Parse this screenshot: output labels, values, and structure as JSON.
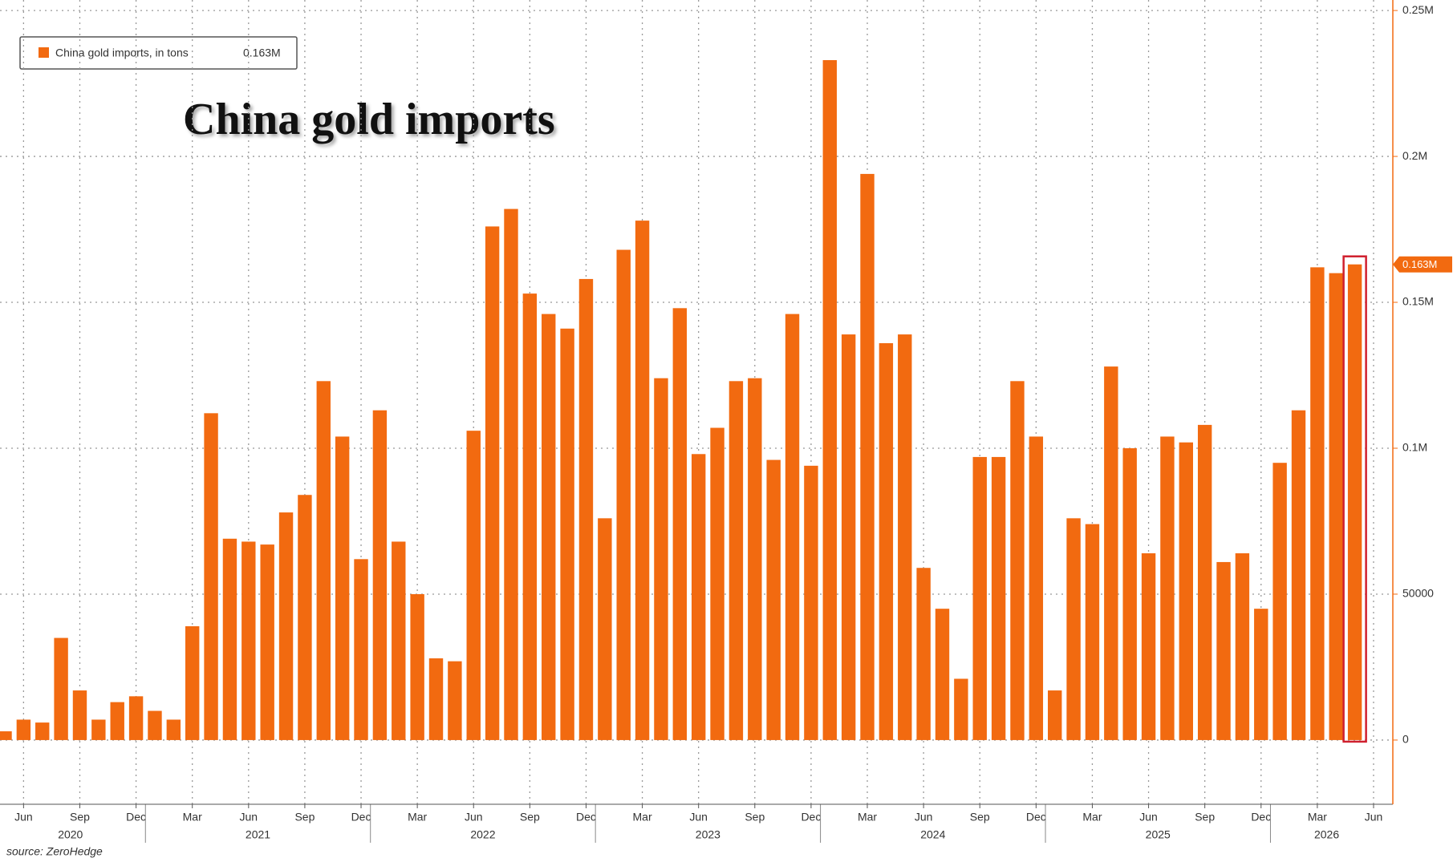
{
  "chart_data": {
    "type": "bar",
    "title": "China gold imports",
    "source": "source: ZeroHedge",
    "series": [
      {
        "name": "China gold imports, in tons",
        "color": "#f26a10",
        "last_value_label": "0.163M"
      }
    ],
    "groups": [
      {
        "label": "2020",
        "categories": [
          null,
          "Jun",
          null,
          null,
          "Sep",
          null,
          null,
          "Dec"
        ],
        "values": [
          3000,
          7000,
          6000,
          35000,
          17000,
          7000,
          13000,
          15000
        ]
      },
      {
        "label": "2021",
        "categories": [
          null,
          null,
          "Mar",
          null,
          null,
          "Jun",
          null,
          null,
          "Sep",
          null,
          null,
          "Dec"
        ],
        "values": [
          10000,
          7000,
          39000,
          112000,
          69000,
          68000,
          67000,
          78000,
          84000,
          123000,
          104000,
          62000
        ]
      },
      {
        "label": "2022",
        "categories": [
          null,
          null,
          "Mar",
          null,
          null,
          "Jun",
          null,
          null,
          "Sep",
          null,
          null,
          "Dec"
        ],
        "values": [
          113000,
          68000,
          50000,
          28000,
          27000,
          106000,
          176000,
          182000,
          153000,
          146000,
          141000,
          158000
        ]
      },
      {
        "label": "2023",
        "categories": [
          null,
          null,
          "Mar",
          null,
          null,
          "Jun",
          null,
          null,
          "Sep",
          null,
          null,
          "Dec"
        ],
        "values": [
          76000,
          168000,
          178000,
          124000,
          148000,
          98000,
          107000,
          123000,
          124000,
          96000,
          146000,
          94000
        ]
      },
      {
        "label": "2024",
        "categories": [
          null,
          null,
          "Mar",
          null,
          null,
          "Jun",
          null,
          null,
          "Sep",
          null,
          null,
          "Dec"
        ],
        "values": [
          233000,
          139000,
          194000,
          136000,
          139000,
          59000,
          45000,
          21000,
          97000,
          97000,
          123000,
          104000
        ]
      },
      {
        "label": "2025",
        "categories": [
          null,
          null,
          "Mar",
          null,
          null,
          "Jun",
          null,
          null,
          "Sep",
          null,
          null,
          "Dec"
        ],
        "values": [
          17000,
          76000,
          74000,
          128000,
          100000,
          64000,
          104000,
          102000,
          108000,
          61000,
          64000,
          45000
        ]
      },
      {
        "label": "2026",
        "categories": [
          null,
          null,
          "Mar",
          null,
          null,
          "Jun"
        ],
        "values": [
          95000,
          113000,
          162000,
          160000,
          163000,
          null
        ]
      }
    ],
    "ylim": [
      -22000,
      253600
    ],
    "yticks": [
      0,
      50000,
      {
        "value": 100000,
        "label": "0.1M"
      },
      {
        "value": 150000,
        "label": "0.15M"
      },
      {
        "value": 200000,
        "label": "0.2M"
      },
      {
        "value": 250000,
        "label": "0.25M"
      }
    ],
    "grid": true,
    "highlight_color": "#d0202e"
  }
}
